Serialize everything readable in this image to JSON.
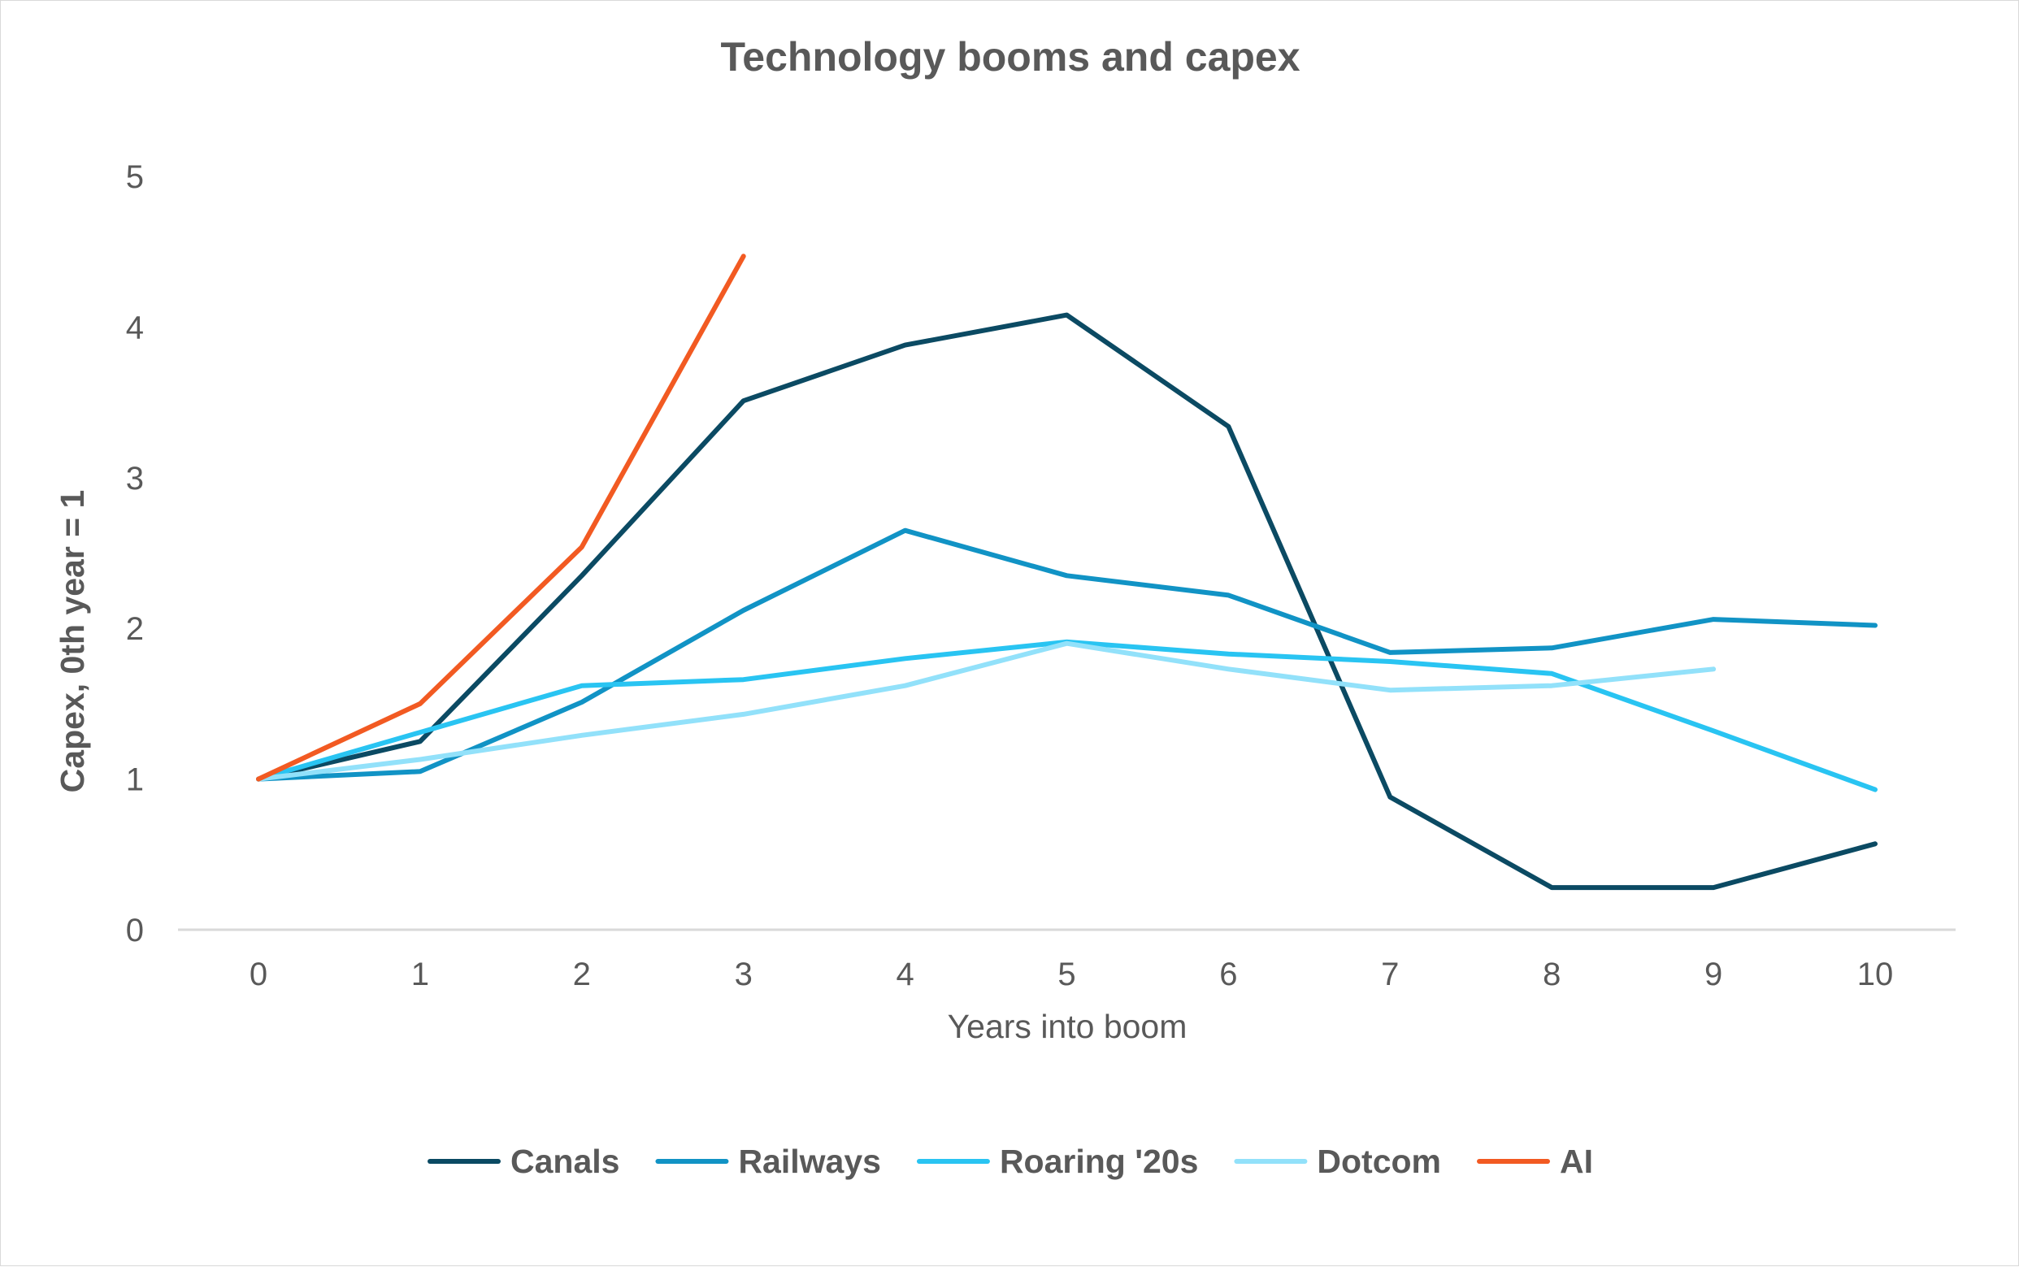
{
  "chart_data": {
    "type": "line",
    "title": "Technology booms and capex",
    "xlabel": "Years into boom",
    "ylabel": "Capex, 0th year = 1",
    "x": [
      0,
      1,
      2,
      3,
      4,
      5,
      6,
      7,
      8,
      9,
      10
    ],
    "xlim": [
      0,
      10
    ],
    "ylim": [
      0,
      5
    ],
    "yticks": [
      0,
      1,
      2,
      3,
      4,
      5
    ],
    "grid": false,
    "legend_position": "bottom",
    "series": [
      {
        "name": "Canals",
        "color": "#0b4a63",
        "values": [
          1,
          1.25,
          2.35,
          3.51,
          3.88,
          4.08,
          3.34,
          0.88,
          0.28,
          0.28,
          0.57
        ]
      },
      {
        "name": "Railways",
        "color": "#1193c5",
        "values": [
          1,
          1.05,
          1.51,
          2.12,
          2.65,
          2.35,
          2.22,
          1.84,
          1.87,
          2.06,
          2.02
        ]
      },
      {
        "name": "Roaring '20s",
        "color": "#29c4f2",
        "values": [
          1,
          1.31,
          1.62,
          1.66,
          1.8,
          1.91,
          1.83,
          1.78,
          1.7,
          1.32,
          0.93
        ]
      },
      {
        "name": "Dotcom",
        "color": "#92e1fa",
        "values": [
          1,
          1.13,
          1.29,
          1.43,
          1.62,
          1.9,
          1.73,
          1.59,
          1.62,
          1.73,
          null
        ]
      },
      {
        "name": "AI",
        "color": "#f25a22",
        "values": [
          1,
          1.5,
          2.54,
          4.47,
          null,
          null,
          null,
          null,
          null,
          null,
          null
        ]
      }
    ]
  }
}
